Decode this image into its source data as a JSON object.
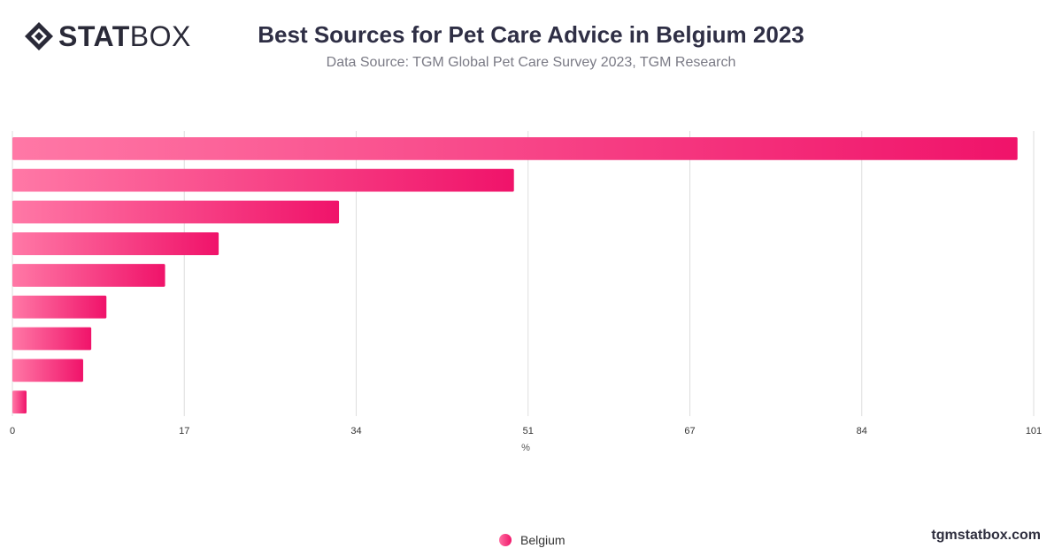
{
  "brand": {
    "logo_bold": "STAT",
    "logo_light": "BOX",
    "site": "tgmstatbox.com"
  },
  "header": {
    "title": "Best Sources for Pet Care Advice in Belgium 2023",
    "subtitle": "Data Source: TGM Global Pet Care Survey 2023, TGM Research"
  },
  "chart_data": {
    "type": "bar",
    "orientation": "horizontal",
    "title": "Best Sources for Pet Care Advice in Belgium 2023",
    "xlabel": "%",
    "ylabel": "",
    "xlim": [
      0,
      101
    ],
    "x_ticks": [
      "0",
      "17",
      "34",
      "51",
      "67",
      "84",
      "101"
    ],
    "grid": true,
    "legend_position": "bottom",
    "categories": [
      "",
      "",
      "",
      "",
      "",
      "",
      "",
      "",
      ""
    ],
    "series": [
      {
        "name": "Belgium",
        "values": [
          99.4,
          49.6,
          32.3,
          20.4,
          15.1,
          9.3,
          7.8,
          7.0,
          1.4
        ]
      }
    ],
    "colors": {
      "bar_start": "#ff78a6",
      "bar_end": "#f0136a",
      "grid": "#dedede",
      "tick_text": "#333333"
    }
  }
}
